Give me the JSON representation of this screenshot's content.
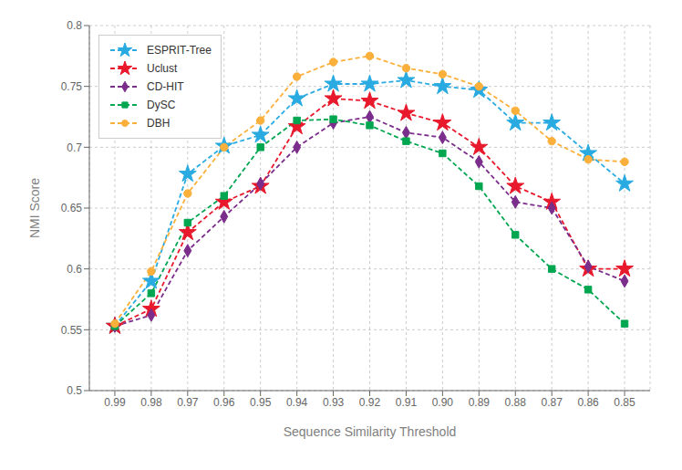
{
  "chart_data": {
    "type": "line",
    "x": [
      0.99,
      0.98,
      0.97,
      0.96,
      0.95,
      0.94,
      0.93,
      0.92,
      0.91,
      0.9,
      0.89,
      0.88,
      0.87,
      0.86,
      0.85
    ],
    "series": [
      {
        "name": "ESPRIT-Tree",
        "color": "#29ABE2",
        "marker": "star",
        "line_style": "dashed",
        "values": [
          0.553,
          0.59,
          0.678,
          0.701,
          0.71,
          0.74,
          0.752,
          0.752,
          0.755,
          0.75,
          0.747,
          0.72,
          0.72,
          0.695,
          0.67
        ]
      },
      {
        "name": "Uclust",
        "color": "#E8192C",
        "marker": "star",
        "line_style": "dashed",
        "values": [
          0.553,
          0.567,
          0.63,
          0.655,
          0.668,
          0.717,
          0.74,
          0.738,
          0.728,
          0.72,
          0.7,
          0.668,
          0.655,
          0.6,
          0.6
        ]
      },
      {
        "name": "CD-HIT",
        "color": "#7B2D8B",
        "marker": "diamond",
        "line_style": "dashed",
        "values": [
          0.553,
          0.562,
          0.615,
          0.643,
          0.67,
          0.7,
          0.72,
          0.725,
          0.712,
          0.708,
          0.688,
          0.655,
          0.65,
          0.602,
          0.59
        ]
      },
      {
        "name": "DySC",
        "color": "#00A650",
        "marker": "square",
        "line_style": "dashed",
        "values": [
          0.553,
          0.58,
          0.638,
          0.66,
          0.7,
          0.722,
          0.723,
          0.718,
          0.705,
          0.695,
          0.668,
          0.628,
          0.6,
          0.583,
          0.555
        ]
      },
      {
        "name": "DBH",
        "color": "#FBB03B",
        "marker": "circle",
        "line_style": "dashed",
        "values": [
          0.555,
          0.598,
          0.662,
          0.7,
          0.722,
          0.758,
          0.77,
          0.775,
          0.765,
          0.76,
          0.75,
          0.73,
          0.705,
          0.69,
          0.688
        ]
      }
    ],
    "xlabel": "Sequence Similarity Threshold",
    "ylabel": "NMI Score",
    "xlim": [
      0.997,
      0.843
    ],
    "xticks": [
      0.99,
      0.98,
      0.97,
      0.96,
      0.95,
      0.94,
      0.93,
      0.92,
      0.91,
      {
        "value": 0.9,
        "label": "0.90"
      },
      0.89,
      0.88,
      0.87,
      0.86,
      0.85
    ],
    "ylim": [
      0.5,
      0.8
    ],
    "yticks": [
      0.5,
      0.55,
      0.6,
      0.65,
      0.7,
      0.75,
      0.8
    ],
    "grid": true,
    "legend": "upper left"
  }
}
